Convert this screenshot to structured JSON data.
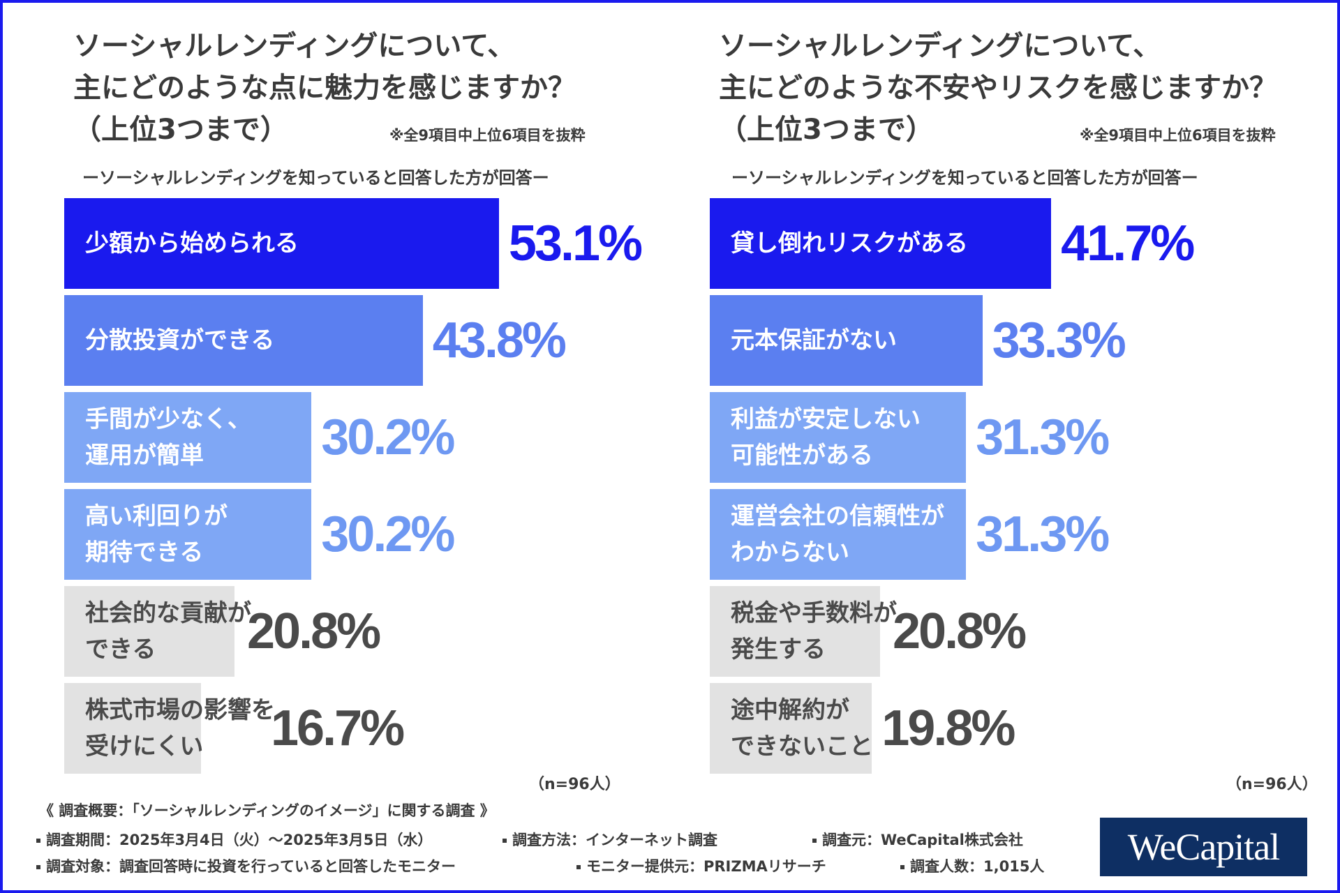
{
  "chart_data": [
    {
      "type": "bar",
      "orientation": "horizontal",
      "title_lines": [
        "ソーシャルレンディングについて、",
        "主にどのような点に魅力を感じますか？",
        "（上位3つまで）"
      ],
      "note": "※全9項目中上位6項目を抜粋",
      "subtitle": "ーソーシャルレンディングを知っていると回答した方が回答ー",
      "n_label": "（n=96人）",
      "unit": "%",
      "xlim": [
        0,
        100
      ],
      "categories": [
        [
          "少額から始められる"
        ],
        [
          "分散投資ができる"
        ],
        [
          "手間が少なく、",
          "運用が簡単"
        ],
        [
          "高い利回りが",
          "期待できる"
        ],
        [
          "社会的な貢献が",
          "できる"
        ],
        [
          "株式市場の影響を",
          "受けにくい"
        ]
      ],
      "values": [
        53.1,
        43.8,
        30.2,
        30.2,
        20.8,
        16.7
      ],
      "value_labels": [
        "53.1%",
        "43.8%",
        "30.2%",
        "30.2%",
        "20.8%",
        "16.7%"
      ]
    },
    {
      "type": "bar",
      "orientation": "horizontal",
      "title_lines": [
        "ソーシャルレンディングについて、",
        "主にどのような不安やリスクを感じますか？",
        "（上位3つまで）"
      ],
      "note": "※全9項目中上位6項目を抜粋",
      "subtitle": "ーソーシャルレンディングを知っていると回答した方が回答ー",
      "n_label": "（n=96人）",
      "unit": "%",
      "xlim": [
        0,
        100
      ],
      "categories": [
        [
          "貸し倒れリスクがある"
        ],
        [
          "元本保証がない"
        ],
        [
          "利益が安定しない",
          "可能性がある"
        ],
        [
          "運営会社の信頼性が",
          "わからない"
        ],
        [
          "税金や手数料が",
          "発生する"
        ],
        [
          "途中解約が",
          "できないこと"
        ]
      ],
      "values": [
        41.7,
        33.3,
        31.3,
        31.3,
        20.8,
        19.8
      ],
      "value_labels": [
        "41.7%",
        "33.3%",
        "31.3%",
        "31.3%",
        "20.8%",
        "19.8%"
      ]
    }
  ],
  "colors": {
    "rank1_bar": "#1a1aee",
    "rank2_bar": "#5b7ff0",
    "rank3_bar": "#7fa7f5",
    "other_bar": "#e2e2e2",
    "rank1_value": "#1a1aee",
    "rank2_value": "#5b7ff0",
    "rank3_value": "#6e98f2",
    "other_value": "#4a4a4a",
    "label_light": "#ffffff",
    "label_dark": "#4a4a4a"
  },
  "footer": {
    "survey_title": "《 調査概要：「ソーシャルレンディングのイメージ」に関する調査 》",
    "period": "調査期間：2025年3月4日（火）〜2025年3月5日（水）",
    "method": "調査方法：インターネット調査",
    "source": "調査元：WeCapital株式会社",
    "target": "調査対象：調査回答時に投資を行っていると回答したモニター",
    "panel": "モニター提供元：PRIZMAリサーチ",
    "count": "調査人数：1,015人"
  },
  "logo": {
    "text": "WeCapital"
  }
}
